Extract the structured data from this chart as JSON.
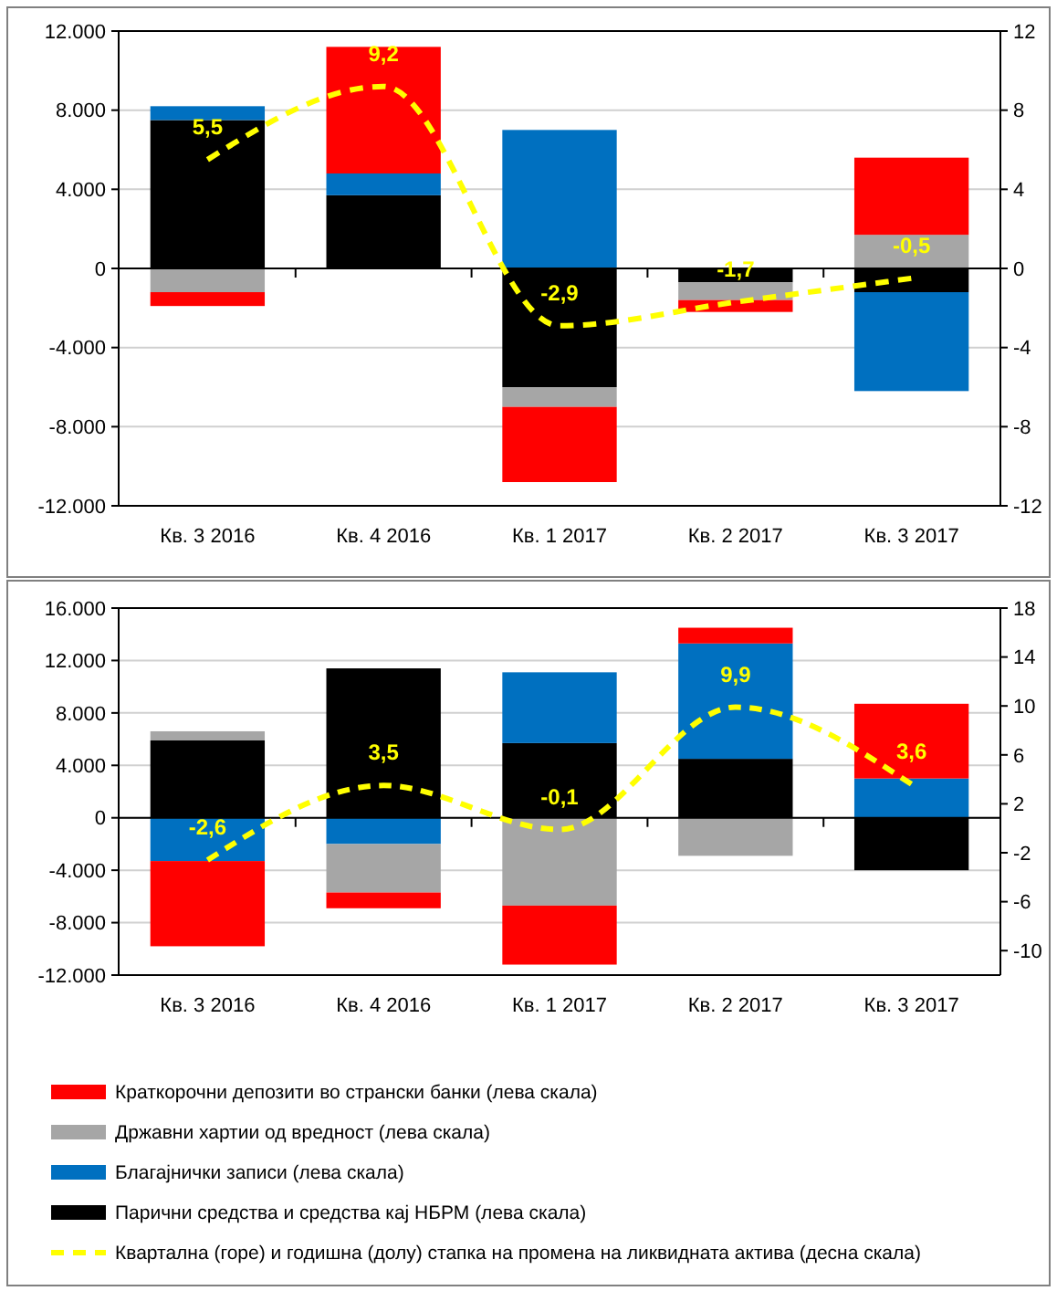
{
  "chart_data": [
    {
      "type": "bar",
      "stacked": true,
      "grid": "y",
      "categories": [
        "Кв. 3 2016",
        "Кв. 4 2016",
        "Кв. 1 2017",
        "Кв. 2 2017",
        "Кв. 3 2017"
      ],
      "ylim": [
        -12000,
        12000
      ],
      "yticks": [
        {
          "value": -12000,
          "label": "-12.000"
        },
        {
          "value": -8000,
          "label": "-8.000"
        },
        {
          "value": -4000,
          "label": "-4.000"
        },
        0,
        {
          "value": 4000,
          "label": "4.000"
        },
        {
          "value": 8000,
          "label": "8.000"
        },
        {
          "value": 12000,
          "label": "12.000"
        }
      ],
      "y2lim": [
        -12,
        12
      ],
      "y2ticks": [
        -12,
        -8,
        -4,
        0,
        4,
        8,
        12
      ],
      "series": [
        {
          "color": "#000000",
          "values": [
            7500,
            3700,
            -6000,
            -700,
            -1200
          ]
        },
        {
          "color": "#0070c0",
          "values": [
            700,
            1100,
            7000,
            0,
            -5000
          ]
        },
        {
          "color": "#a6a6a6",
          "values": [
            -1200,
            0,
            -1000,
            -900,
            1700
          ]
        },
        {
          "color": "#ff0000",
          "values": [
            -700,
            6400,
            -3800,
            -600,
            3900
          ]
        },
        {
          "type": "line",
          "axis": "y2",
          "color": "#ffff00",
          "line_style": "dashed",
          "values": [
            5.5,
            9.2,
            -2.9,
            -1.7,
            -0.5
          ],
          "value_labels": [
            "5,5",
            "9,2",
            "-2,9",
            "-1,7",
            "-0,5"
          ]
        }
      ]
    },
    {
      "type": "bar",
      "stacked": true,
      "grid": "y",
      "legend": "bottom",
      "categories": [
        "Кв. 3 2016",
        "Кв. 4 2016",
        "Кв. 1 2017",
        "Кв. 2 2017",
        "Кв. 3 2017"
      ],
      "ylim": [
        -12000,
        16000
      ],
      "yticks": [
        {
          "value": -12000,
          "label": "-12.000"
        },
        {
          "value": -8000,
          "label": "-8.000"
        },
        {
          "value": -4000,
          "label": "-4.000"
        },
        0,
        {
          "value": 4000,
          "label": "4.000"
        },
        {
          "value": 8000,
          "label": "8.000"
        },
        {
          "value": 12000,
          "label": "12.000"
        },
        {
          "value": 16000,
          "label": "16.000"
        }
      ],
      "y2lim": [
        -12,
        18
      ],
      "y2ticks": [
        -10,
        -6,
        -2,
        2,
        6,
        10,
        14,
        18
      ],
      "series": [
        {
          "name": "Парични средства и средства кај НБРМ (лева скала)",
          "color": "#000000",
          "values": [
            5900,
            11400,
            5700,
            4500,
            -4000
          ]
        },
        {
          "name": "Благајнички записи (лева скала)",
          "color": "#0070c0",
          "values": [
            -3300,
            -2000,
            5400,
            8800,
            3000
          ]
        },
        {
          "name": "Државни хартии од вредност (лева скала)",
          "color": "#a6a6a6",
          "values": [
            700,
            -3700,
            -6700,
            -2900,
            0
          ]
        },
        {
          "name": "Краткорочни депозити во странски банки (лева скала)",
          "color": "#ff0000",
          "values": [
            -6500,
            -1200,
            -4500,
            1200,
            5700
          ]
        },
        {
          "name": "Квартална (горе) и годишна (долу) стапка на промена на ликвидната актива (десна скала)",
          "type": "line",
          "axis": "y2",
          "color": "#ffff00",
          "line_style": "dashed",
          "values": [
            -2.6,
            3.5,
            -0.1,
            9.9,
            3.6
          ],
          "value_labels": [
            "-2,6",
            "3,5",
            "-0,1",
            "9,9",
            "3,6"
          ]
        }
      ]
    }
  ]
}
